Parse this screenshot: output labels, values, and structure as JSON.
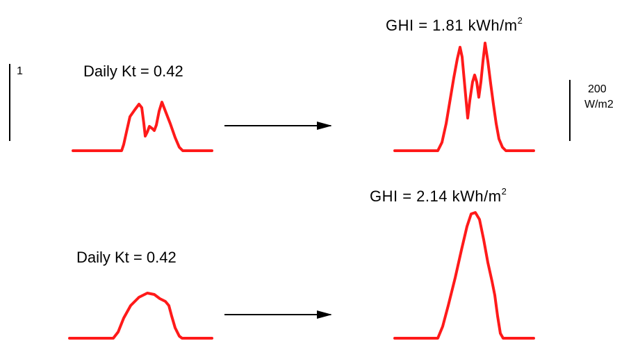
{
  "scale_left": {
    "label": "1"
  },
  "scale_right": {
    "value": "200",
    "unit": "W/m2"
  },
  "rows": [
    {
      "daily_kt": "Daily Kt = 0.42",
      "ghi_prefix": "GHI = 1.81 kWh/m",
      "ghi_exp": "2"
    },
    {
      "daily_kt": "Daily Kt = 0.42",
      "ghi_prefix": "GHI = 2.14  kWh/m",
      "ghi_exp": "2"
    }
  ],
  "colors": {
    "curve": "#ff1a1a",
    "arrow": "#000000"
  }
}
